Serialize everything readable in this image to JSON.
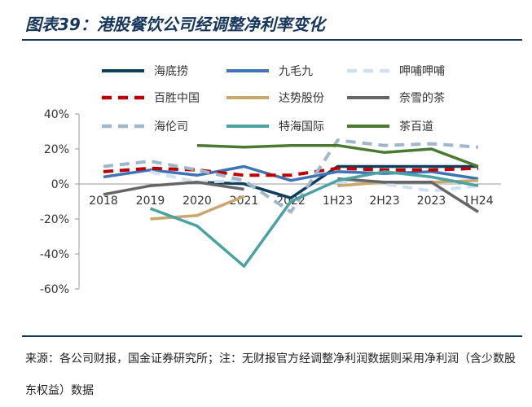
{
  "figure": {
    "title": "图表39：港股餐饮公司经调整净利率变化",
    "source_note": "来源：各公司财报，国金证券研究所；注：无财报官方经调整净利润数据则采用净利润（含少数股东权益）数据"
  },
  "chart_data": {
    "type": "line",
    "categories": [
      "2018",
      "2019",
      "2020",
      "2021",
      "2022",
      "1H23",
      "2H23",
      "2023",
      "1H24"
    ],
    "y_unit": "%",
    "ylim": [
      -60,
      40
    ],
    "yticks": [
      -60,
      -40,
      -20,
      0,
      20,
      40
    ],
    "ytick_labels": [
      "-60%",
      "-40%",
      "-20%",
      "0%",
      "20%",
      "40%"
    ],
    "grid": false,
    "legend": {
      "position": "top",
      "columns": 3
    },
    "series": [
      {
        "name": "海底捞",
        "color": "#0f3d5c",
        "dash": "solid",
        "values": [
          null,
          null,
          1,
          0.1,
          -8,
          10,
          10,
          10,
          10
        ]
      },
      {
        "name": "九毛九",
        "color": "#3e74b5",
        "dash": "solid",
        "values": [
          4,
          8,
          5,
          10,
          2,
          7,
          6,
          7,
          3
        ]
      },
      {
        "name": "呷哺呷哺",
        "color": "#cfe0ee",
        "dash": "dashed",
        "values": [
          null,
          7,
          1,
          2,
          null,
          1,
          0,
          -4,
          -1
        ]
      },
      {
        "name": "百胜中国",
        "color": "#c00000",
        "dash": "dashed",
        "values": [
          7,
          9,
          8,
          5,
          5,
          9,
          8,
          8,
          9
        ]
      },
      {
        "name": "达势股份",
        "color": "#c9a66b",
        "dash": "solid",
        "values": [
          null,
          -20,
          -18,
          -7,
          null,
          -1,
          1,
          1,
          2
        ]
      },
      {
        "name": "奈雪的茶",
        "color": "#666666",
        "dash": "solid",
        "values": [
          -6,
          -1,
          1,
          -3,
          null,
          3,
          1,
          1,
          -16
        ]
      },
      {
        "name": "海伦司",
        "color": "#9eb8c9",
        "dash": "dashed",
        "values": [
          10,
          13,
          8,
          2,
          -16,
          25,
          22,
          23,
          21
        ]
      },
      {
        "name": "特海国际",
        "color": "#4aa3a1",
        "dash": "solid",
        "values": [
          null,
          -14,
          -24,
          -47,
          -10,
          2,
          7,
          4,
          -1
        ]
      },
      {
        "name": "茶百道",
        "color": "#4a7a30",
        "dash": "solid",
        "values": [
          null,
          null,
          22,
          21,
          22,
          22,
          18,
          20,
          10
        ]
      }
    ]
  }
}
